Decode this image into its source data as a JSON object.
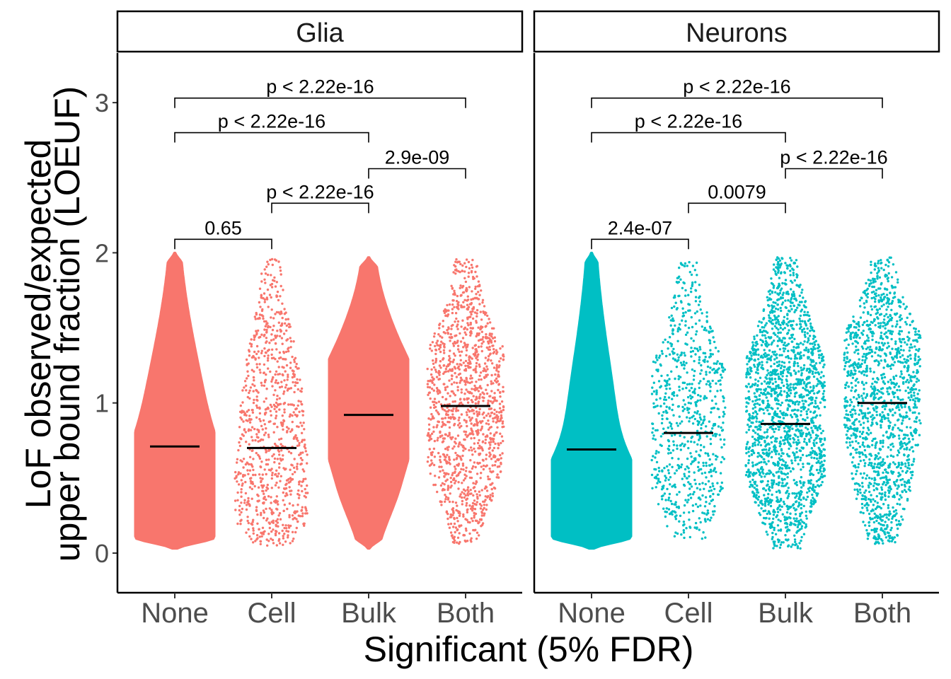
{
  "chart_data": {
    "type": "beeswarm",
    "xlabel": "Significant (5% FDR)",
    "ylabel_lines": [
      "LoF observed/expected",
      "upper bound fraction (LOEUF)"
    ],
    "ylim": [
      -0.25,
      3.35
    ],
    "yticks": [
      0,
      1,
      2,
      3
    ],
    "categories": [
      "None",
      "Cell",
      "Bulk",
      "Both"
    ],
    "grid": false,
    "legend": "none",
    "panels": [
      {
        "name": "Glia",
        "color": "#F8766D",
        "medians": [
          0.71,
          0.7,
          0.92,
          0.98
        ],
        "comparisons": [
          {
            "from": "None",
            "to": "Both",
            "y": 3.03,
            "label": "p < 2.22e-16"
          },
          {
            "from": "None",
            "to": "Bulk",
            "y": 2.8,
            "label": "p < 2.22e-16"
          },
          {
            "from": "Bulk",
            "to": "Both",
            "y": 2.56,
            "label": "2.9e-09"
          },
          {
            "from": "Cell",
            "to": "Bulk",
            "y": 2.33,
            "label": "p < 2.22e-16"
          },
          {
            "from": "None",
            "to": "Cell",
            "y": 2.09,
            "label": "0.65"
          }
        ]
      },
      {
        "name": "Neurons",
        "color": "#00BFC4",
        "medians": [
          0.69,
          0.8,
          0.86,
          1.0
        ],
        "comparisons": [
          {
            "from": "None",
            "to": "Both",
            "y": 3.03,
            "label": "p < 2.22e-16"
          },
          {
            "from": "None",
            "to": "Bulk",
            "y": 2.8,
            "label": "p < 2.22e-16"
          },
          {
            "from": "Bulk",
            "to": "Both",
            "y": 2.56,
            "label": "p < 2.22e-16"
          },
          {
            "from": "Cell",
            "to": "Bulk",
            "y": 2.33,
            "label": "0.0079"
          },
          {
            "from": "None",
            "to": "Cell",
            "y": 2.09,
            "label": "2.4e-07"
          }
        ]
      }
    ]
  }
}
